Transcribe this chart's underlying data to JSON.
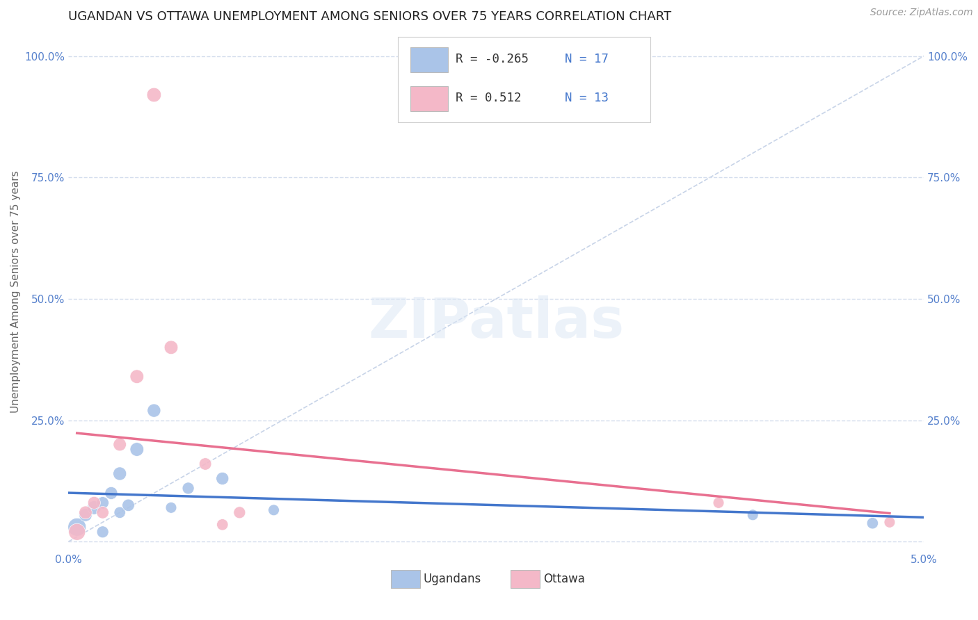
{
  "title": "UGANDAN VS OTTAWA UNEMPLOYMENT AMONG SENIORS OVER 75 YEARS CORRELATION CHART",
  "source": "Source: ZipAtlas.com",
  "ylabel": "Unemployment Among Seniors over 75 years",
  "xlim": [
    0.0,
    0.05
  ],
  "ylim": [
    -0.02,
    1.05
  ],
  "xticks": [
    0.0,
    0.01,
    0.02,
    0.03,
    0.04,
    0.05
  ],
  "xtick_labels": [
    "0.0%",
    "",
    "",
    "",
    "",
    "5.0%"
  ],
  "yticks": [
    0.0,
    0.25,
    0.5,
    0.75,
    1.0
  ],
  "ytick_labels_left": [
    "",
    "25.0%",
    "50.0%",
    "75.0%",
    "100.0%"
  ],
  "ytick_labels_right": [
    "",
    "25.0%",
    "50.0%",
    "75.0%",
    "100.0%"
  ],
  "background_color": "#ffffff",
  "grid_color": "#d4dded",
  "watermark": "ZIPatlas",
  "ugandans_color": "#aac4e8",
  "ottawa_color": "#f4b8c8",
  "ugandans_line_color": "#4477cc",
  "ottawa_line_color": "#e87090",
  "diag_line_color": "#c8d4e8",
  "legend_R_ugandans": "-0.265",
  "legend_N_ugandans": "17",
  "legend_R_ottawa": "0.512",
  "legend_N_ottawa": "13",
  "ugandans_x": [
    0.0005,
    0.001,
    0.0015,
    0.002,
    0.002,
    0.0025,
    0.003,
    0.003,
    0.0035,
    0.004,
    0.005,
    0.006,
    0.007,
    0.009,
    0.012,
    0.04,
    0.047
  ],
  "ugandans_y": [
    0.03,
    0.055,
    0.07,
    0.08,
    0.02,
    0.1,
    0.06,
    0.14,
    0.075,
    0.19,
    0.27,
    0.07,
    0.11,
    0.13,
    0.065,
    0.055,
    0.038
  ],
  "ugandans_size": [
    350,
    180,
    200,
    160,
    150,
    170,
    140,
    190,
    160,
    200,
    190,
    130,
    150,
    170,
    130,
    130,
    140
  ],
  "ottawa_x": [
    0.0005,
    0.001,
    0.0015,
    0.002,
    0.003,
    0.004,
    0.005,
    0.006,
    0.008,
    0.009,
    0.01,
    0.038,
    0.048
  ],
  "ottawa_y": [
    0.02,
    0.06,
    0.08,
    0.06,
    0.2,
    0.34,
    0.92,
    0.4,
    0.16,
    0.035,
    0.06,
    0.08,
    0.04
  ],
  "ottawa_size": [
    300,
    180,
    170,
    160,
    180,
    200,
    220,
    200,
    160,
    140,
    150,
    130,
    130
  ],
  "title_fontsize": 13,
  "axis_label_fontsize": 11,
  "tick_fontsize": 11,
  "tick_color": "#5580cc",
  "title_color": "#222222",
  "source_color": "#999999"
}
